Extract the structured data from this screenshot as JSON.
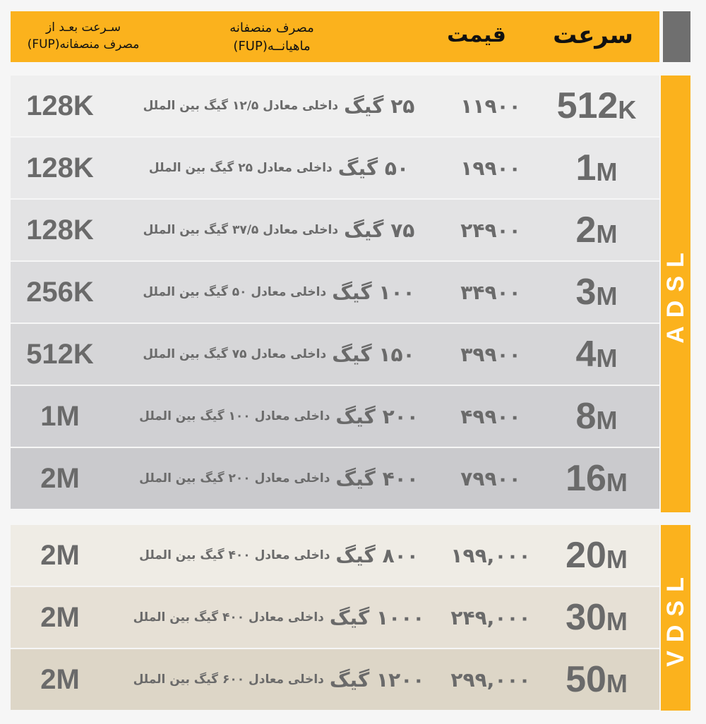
{
  "header": {
    "speed": "سرعت",
    "price": "قیمت",
    "usage_line1": "مصرف منصفانه",
    "usage_line2": "ماهیانــه(FUP)",
    "after_line1": "سـرعت بعـد از",
    "after_line2": "مصرف منصفانه(FUP)"
  },
  "sections": {
    "adsl": "ADSL",
    "vdsl": "VDSL"
  },
  "colors": {
    "accent": "#fbb21d",
    "header_gray": "#6f6f6f",
    "text": "#6a6a6a"
  },
  "adsl_rows": [
    {
      "speed": "512",
      "unit": "K",
      "price": "۱۱۹۰۰",
      "usage_big": "۲۵ گیگ",
      "usage_small": "داخلی معادل ۱۲/۵ گیگ بین الملل",
      "after": "128K",
      "bg": "#efefef"
    },
    {
      "speed": "1",
      "unit": "M",
      "price": "۱۹۹۰۰",
      "usage_big": "۵۰ گیگ",
      "usage_small": "داخلی معادل ۲۵ گیگ بین الملل",
      "after": "128K",
      "bg": "#e9e9ea"
    },
    {
      "speed": "2",
      "unit": "M",
      "price": "۲۴۹۰۰",
      "usage_big": "۷۵ گیگ",
      "usage_small": "داخلی معادل ۳۷/۵ گیگ بین الملل",
      "after": "128K",
      "bg": "#e3e3e4"
    },
    {
      "speed": "3",
      "unit": "M",
      "price": "۳۴۹۰۰",
      "usage_big": "۱۰۰ گیگ",
      "usage_small": "داخلی معادل ۵۰ گیگ بین الملل",
      "after": "256K",
      "bg": "#dcdcde"
    },
    {
      "speed": "4",
      "unit": "M",
      "price": "۳۹۹۰۰",
      "usage_big": "۱۵۰ گیگ",
      "usage_small": "داخلی معادل ۷۵ گیگ بین الملل",
      "after": "512K",
      "bg": "#d6d6d8"
    },
    {
      "speed": "8",
      "unit": "M",
      "price": "۴۹۹۰۰",
      "usage_big": "۲۰۰ گیگ",
      "usage_small": "داخلی معادل ۱۰۰ گیگ بین الملل",
      "after": "1M",
      "bg": "#d0d0d3"
    },
    {
      "speed": "16",
      "unit": "M",
      "price": "۷۹۹۰۰",
      "usage_big": "۴۰۰ گیگ",
      "usage_small": "داخلی معادل ۲۰۰ گیگ بین الملل",
      "after": "2M",
      "bg": "#cacacd"
    }
  ],
  "vdsl_rows": [
    {
      "speed": "20",
      "unit": "M",
      "price": "۱۹۹,۰۰۰",
      "usage_big": "۸۰۰ گیگ",
      "usage_small": "داخلی معادل ۴۰۰ گیگ بین الملل",
      "after": "2M",
      "bg": "#efece5"
    },
    {
      "speed": "30",
      "unit": "M",
      "price": "۲۴۹,۰۰۰",
      "usage_big": "۱۰۰۰ گیگ",
      "usage_small": "داخلی معادل ۴۰۰ گیگ بین الملل",
      "after": "2M",
      "bg": "#e6e0d5"
    },
    {
      "speed": "50",
      "unit": "M",
      "price": "۲۹۹,۰۰۰",
      "usage_big": "۱۲۰۰ گیگ",
      "usage_small": "داخلی معادل ۶۰۰ گیگ بین الملل",
      "after": "2M",
      "bg": "#ddd6c7"
    }
  ]
}
